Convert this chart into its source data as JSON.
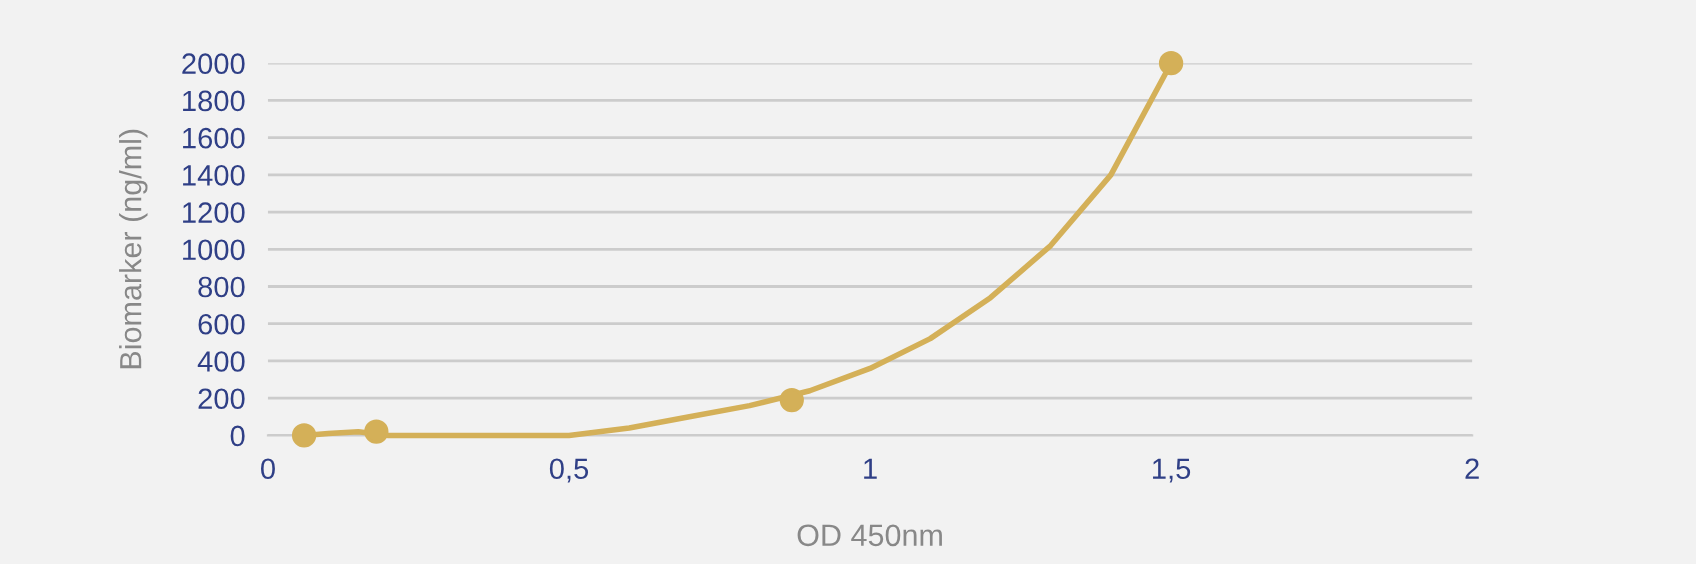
{
  "chart_data": {
    "type": "scatter",
    "xlabel": "OD 450nm",
    "ylabel": "Biomarker (ng/ml)",
    "xlim": [
      0,
      2
    ],
    "xticks": [
      0,
      {
        "value": 0.5,
        "label": "0,5"
      },
      1,
      {
        "value": 1.5,
        "label": "1,5"
      },
      2
    ],
    "ylim": [
      0,
      2000
    ],
    "yticks": [
      0,
      200,
      400,
      600,
      800,
      1000,
      1200,
      1400,
      1600,
      1800,
      2000
    ],
    "grid": "y",
    "legend": false,
    "series": [
      {
        "type": "line",
        "color": "#d4b058",
        "marker": "none",
        "x": [
          0.06,
          0.1,
          0.15,
          0.2,
          0.25,
          0.3,
          0.35,
          0.4,
          0.5,
          0.6,
          0.7,
          0.8,
          0.9,
          1.0,
          1.1,
          1.2,
          1.3,
          1.4,
          1.5
        ],
        "values": [
          0,
          10,
          20,
          0,
          0,
          0,
          0,
          0,
          0,
          40,
          100,
          160,
          240,
          360,
          520,
          740,
          1020,
          1400,
          2000
        ]
      },
      {
        "color": "#d4b058",
        "marker": "circle",
        "x": [
          0.06,
          0.18,
          0.87,
          1.5
        ],
        "values": [
          0,
          20,
          190,
          2000
        ]
      }
    ]
  }
}
